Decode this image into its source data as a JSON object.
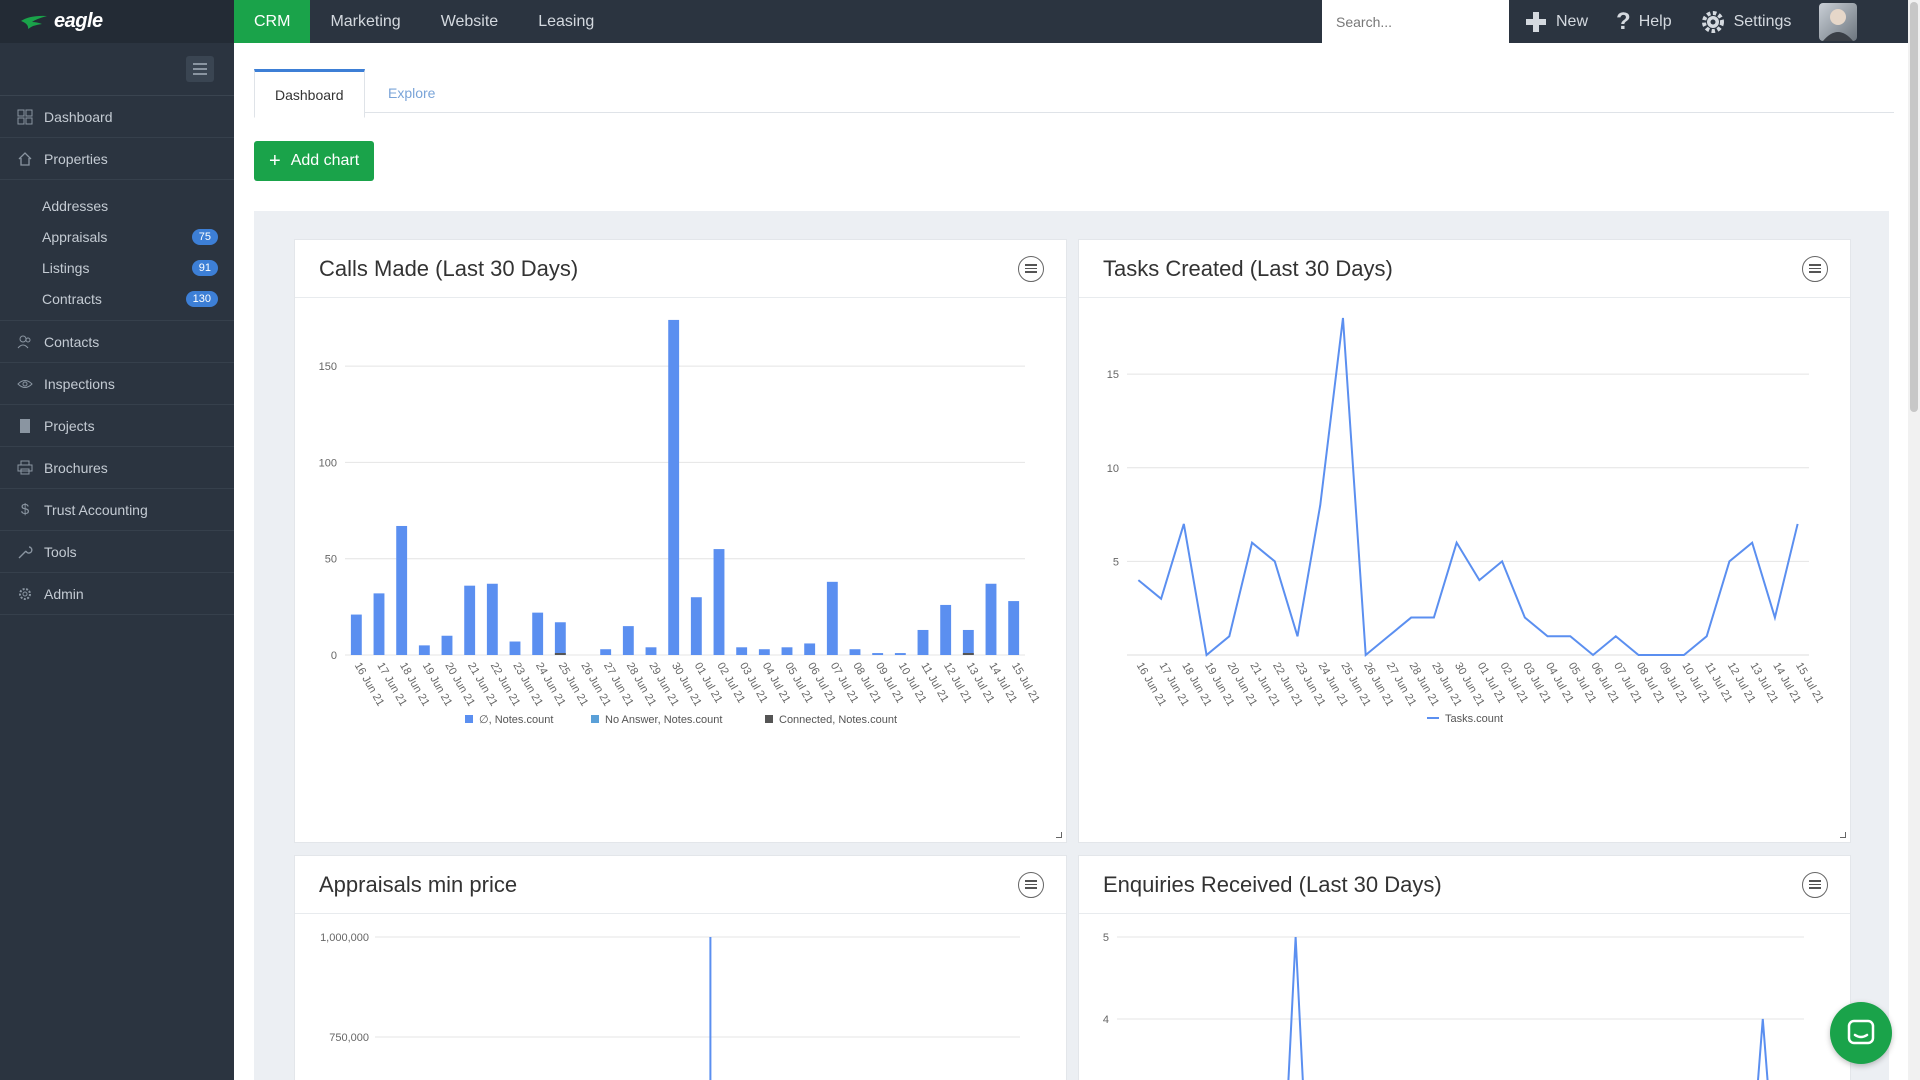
{
  "brand": {
    "name": "eagle",
    "accent": "#1aa34a",
    "sidebar_bg": "#2b3440",
    "series_color": "#5b8ff0"
  },
  "nav": {
    "tabs": [
      {
        "label": "CRM",
        "active": true
      },
      {
        "label": "Marketing",
        "active": false
      },
      {
        "label": "Website",
        "active": false
      },
      {
        "label": "Leasing",
        "active": false
      }
    ],
    "search_placeholder": "Search...",
    "new_label": "New",
    "help_label": "Help",
    "settings_label": "Settings"
  },
  "sidebar": {
    "items": [
      {
        "label": "Dashboard",
        "icon": "grid-icon"
      },
      {
        "label": "Properties",
        "icon": "home-icon"
      }
    ],
    "subitems": [
      {
        "label": "Addresses",
        "badge": ""
      },
      {
        "label": "Appraisals",
        "badge": "75"
      },
      {
        "label": "Listings",
        "badge": "91"
      },
      {
        "label": "Contracts",
        "badge": "130"
      }
    ],
    "items2": [
      {
        "label": "Contacts",
        "icon": "contacts-icon"
      },
      {
        "label": "Inspections",
        "icon": "eye-icon"
      },
      {
        "label": "Projects",
        "icon": "book-icon"
      },
      {
        "label": "Brochures",
        "icon": "printer-icon"
      },
      {
        "label": "Trust Accounting",
        "icon": "dollar-icon"
      },
      {
        "label": "Tools",
        "icon": "wrench-icon"
      },
      {
        "label": "Admin",
        "icon": "gear-icon"
      }
    ]
  },
  "page": {
    "tabs": {
      "dashboard": "Dashboard",
      "explore": "Explore"
    },
    "add_chart_label": "Add chart"
  },
  "cards": [
    {
      "title": "Calls Made (Last 30 Days)"
    },
    {
      "title": "Tasks Created (Last 30 Days)"
    },
    {
      "title": "Appraisals min price"
    },
    {
      "title": "Enquiries Received (Last 30 Days)"
    }
  ],
  "chart_data": [
    {
      "type": "bar",
      "title": "Calls Made (Last 30 Days)",
      "categories": [
        "16 Jun 21",
        "17 Jun 21",
        "18 Jun 21",
        "19 Jun 21",
        "20 Jun 21",
        "21 Jun 21",
        "22 Jun 21",
        "23 Jun 21",
        "24 Jun 21",
        "25 Jun 21",
        "26 Jun 21",
        "27 Jun 21",
        "28 Jun 21",
        "29 Jun 21",
        "30 Jun 21",
        "01 Jul 21",
        "02 Jul 21",
        "03 Jul 21",
        "04 Jul 21",
        "05 Jul 21",
        "06 Jul 21",
        "07 Jul 21",
        "08 Jul 21",
        "09 Jul 21",
        "10 Jul 21",
        "11 Jul 21",
        "12 Jul 21",
        "13 Jul 21",
        "14 Jul 21",
        "15 Jul 21"
      ],
      "series": [
        {
          "name": "∅, Notes.count",
          "color": "#5b8ff0",
          "values": [
            21,
            32,
            67,
            5,
            10,
            36,
            37,
            7,
            22,
            17,
            0,
            3,
            15,
            4,
            174,
            30,
            55,
            4,
            3,
            4,
            6,
            38,
            3,
            1,
            1,
            13,
            26,
            13,
            37,
            28
          ]
        },
        {
          "name": "No Answer, Notes.count",
          "color": "#5aa0d8",
          "values": [
            0,
            0,
            0,
            0,
            0,
            0,
            0,
            0,
            0,
            0,
            0,
            0,
            0,
            0,
            0,
            0,
            0,
            0,
            0,
            0,
            0,
            0,
            0,
            0,
            0,
            0,
            0,
            0,
            0,
            0
          ]
        },
        {
          "name": "Connected, Notes.count",
          "color": "#555555",
          "values": [
            0,
            0,
            0,
            0,
            0,
            0,
            0,
            0,
            0,
            1,
            0,
            0,
            0,
            0,
            0,
            0,
            0,
            0,
            0,
            0,
            0,
            0,
            0,
            0,
            0,
            0,
            0,
            1,
            0,
            0
          ]
        }
      ],
      "yticks": [
        0,
        50,
        100,
        150
      ],
      "ylim": [
        0,
        175
      ]
    },
    {
      "type": "line",
      "title": "Tasks Created (Last 30 Days)",
      "categories": [
        "16 Jun 21",
        "17 Jun 21",
        "18 Jun 21",
        "19 Jun 21",
        "20 Jun 21",
        "21 Jun 21",
        "22 Jun 21",
        "23 Jun 21",
        "24 Jun 21",
        "25 Jun 21",
        "26 Jun 21",
        "27 Jun 21",
        "28 Jun 21",
        "29 Jun 21",
        "30 Jun 21",
        "01 Jul 21",
        "02 Jul 21",
        "03 Jul 21",
        "04 Jul 21",
        "05 Jul 21",
        "06 Jul 21",
        "07 Jul 21",
        "08 Jul 21",
        "09 Jul 21",
        "10 Jul 21",
        "11 Jul 21",
        "12 Jul 21",
        "13 Jul 21",
        "14 Jul 21",
        "15 Jul 21"
      ],
      "series": [
        {
          "name": "Tasks.count",
          "color": "#5b8ff0",
          "values": [
            4,
            3,
            7,
            0,
            1,
            6,
            5,
            1,
            8,
            18,
            0,
            1,
            2,
            2,
            6,
            4,
            5,
            2,
            1,
            1,
            0,
            1,
            0,
            0,
            0,
            1,
            5,
            6,
            2,
            7
          ]
        }
      ],
      "yticks": [
        5,
        10,
        15
      ],
      "ylim": [
        0,
        18
      ]
    },
    {
      "type": "line",
      "title": "Appraisals min price",
      "yticks": [
        750000,
        1000000
      ],
      "ytick_labels": [
        "750,000",
        "1,000,000"
      ],
      "spike_position": 0.52
    },
    {
      "type": "line",
      "title": "Enquiries Received (Last 30 Days)",
      "yticks": [
        4,
        5
      ],
      "spikes": [
        0.26,
        0.94
      ]
    }
  ]
}
